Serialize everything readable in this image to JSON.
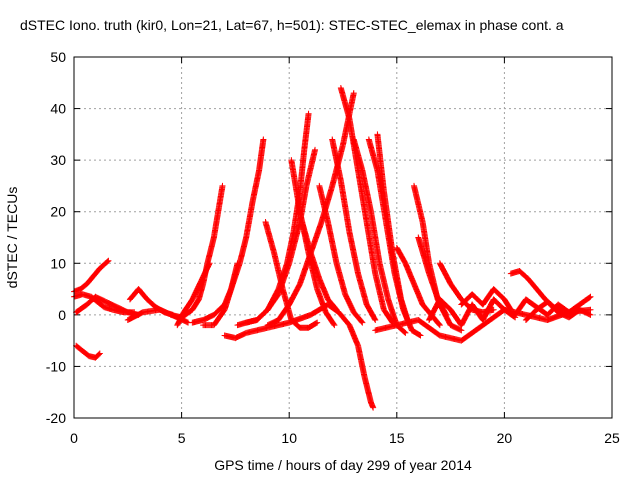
{
  "chart_data": {
    "type": "scatter",
    "title": "dSTEC Iono. truth (kir0, Lon=21, Lat=67, h=501): STEC-STEC_elemax in phase cont. a",
    "xlabel": "GPS time / hours of day 299 of year 2014",
    "ylabel": "dSTEC  / TECUs",
    "xlim": [
      0,
      25
    ],
    "ylim": [
      -20,
      50
    ],
    "xticks": [
      0,
      5,
      10,
      15,
      20,
      25
    ],
    "yticks": [
      -20,
      -10,
      0,
      10,
      20,
      30,
      40,
      50
    ],
    "grid": true,
    "marker": "plus",
    "color": "#ff0000",
    "series": [
      {
        "x": [
          0.0,
          0.3,
          0.6,
          0.9,
          1.2,
          1.6
        ],
        "y": [
          4.5,
          5.0,
          6.0,
          7.5,
          9.0,
          10.5
        ]
      },
      {
        "x": [
          0.0,
          0.4,
          0.8,
          1.1,
          1.4,
          1.8,
          2.3,
          2.8
        ],
        "y": [
          3.5,
          4.0,
          3.5,
          2.5,
          1.5,
          1.0,
          0.5,
          0.5
        ]
      },
      {
        "x": [
          0.1,
          0.6,
          1.0,
          1.5,
          2.0,
          2.5,
          3.0
        ],
        "y": [
          0.5,
          2.0,
          3.5,
          2.5,
          1.5,
          0.5,
          0.0
        ]
      },
      {
        "x": [
          0.1,
          0.4,
          0.7,
          1.0,
          1.2
        ],
        "y": [
          -6.0,
          -7.0,
          -8.0,
          -8.3,
          -7.5
        ]
      },
      {
        "x": [
          2.6,
          3.0,
          3.4,
          3.8,
          4.2,
          4.6
        ],
        "y": [
          3.0,
          5.0,
          3.0,
          1.5,
          0.5,
          0.0
        ]
      },
      {
        "x": [
          2.5,
          3.2,
          4.0,
          4.8,
          5.3
        ],
        "y": [
          -1.0,
          0.5,
          1.0,
          -0.5,
          -1.5
        ]
      },
      {
        "x": [
          4.5,
          5.0,
          5.5,
          5.8,
          6.0,
          6.2,
          6.5,
          6.7,
          6.9
        ],
        "y": [
          0.0,
          -0.5,
          1.0,
          3.0,
          6.0,
          10.0,
          15.0,
          20.0,
          25.0
        ]
      },
      {
        "x": [
          4.8,
          5.1,
          5.5,
          5.9,
          6.3
        ],
        "y": [
          -2.0,
          0.5,
          3.0,
          6.5,
          10.0
        ]
      },
      {
        "x": [
          5.5,
          6.0,
          6.5,
          7.0,
          7.3,
          7.7,
          8.0,
          8.3,
          8.6,
          8.8
        ],
        "y": [
          -1.5,
          -1.0,
          0.0,
          2.0,
          5.0,
          10.0,
          15.0,
          22.0,
          28.0,
          34.0
        ]
      },
      {
        "x": [
          6.0,
          6.5,
          7.0,
          7.3,
          7.6
        ],
        "y": [
          -2.0,
          -2.0,
          1.0,
          5.0,
          10.0
        ]
      },
      {
        "x": [
          7.0,
          7.5,
          8.0,
          9.0,
          10.0,
          11.0,
          11.8,
          12.3,
          12.8,
          13.2,
          13.5,
          13.8,
          13.9
        ],
        "y": [
          -4.0,
          -4.5,
          -3.5,
          -2.5,
          -1.5,
          0.0,
          2.0,
          0.5,
          -2.0,
          -6.0,
          -12.0,
          -17.0,
          -18.0
        ]
      },
      {
        "x": [
          7.6,
          8.0,
          8.5,
          9.0,
          9.5,
          9.9,
          10.2,
          10.5,
          10.7,
          10.9
        ],
        "y": [
          -2.0,
          -1.5,
          -1.0,
          1.0,
          5.0,
          10.0,
          16.0,
          24.0,
          32.0,
          39.0
        ]
      },
      {
        "x": [
          8.0,
          8.5,
          9.0,
          9.5,
          10.0,
          10.5,
          10.8,
          11.2
        ],
        "y": [
          -1.5,
          -1.0,
          1.0,
          4.0,
          10.0,
          18.0,
          25.0,
          32.0
        ]
      },
      {
        "x": [
          8.9,
          9.3,
          9.7,
          10.1,
          10.5,
          10.9,
          11.3
        ],
        "y": [
          18.0,
          12.0,
          5.0,
          -1.0,
          -2.5,
          -2.5,
          -1.5
        ]
      },
      {
        "x": [
          9.0,
          9.5,
          10.0,
          10.5,
          11.0,
          11.5,
          12.0,
          12.5,
          13.0
        ],
        "y": [
          -2.0,
          -1.0,
          2.0,
          6.0,
          12.0,
          18.0,
          25.0,
          33.0,
          43.0
        ]
      },
      {
        "x": [
          10.1,
          10.5,
          10.9,
          11.3,
          11.7,
          12.1
        ],
        "y": [
          30.0,
          20.0,
          12.0,
          5.0,
          0.5,
          -2.0
        ]
      },
      {
        "x": [
          10.6,
          11.0,
          11.4,
          11.8,
          12.2
        ],
        "y": [
          18.0,
          12.0,
          7.0,
          3.0,
          1.0
        ]
      },
      {
        "x": [
          11.4,
          11.8,
          12.2,
          12.6,
          13.0,
          13.4
        ],
        "y": [
          25.0,
          18.0,
          10.0,
          4.0,
          0.5,
          -1.5
        ]
      },
      {
        "x": [
          12.0,
          12.4,
          12.8,
          13.2,
          13.6,
          14.0
        ],
        "y": [
          34.0,
          26.0,
          16.0,
          8.0,
          2.0,
          -1.0
        ]
      },
      {
        "x": [
          12.4,
          12.8,
          13.2,
          13.6,
          14.0,
          14.4,
          14.8
        ],
        "y": [
          44.0,
          38.0,
          28.0,
          18.0,
          8.0,
          1.0,
          -1.5
        ]
      },
      {
        "x": [
          13.0,
          13.4,
          13.8,
          14.2,
          14.6,
          15.0,
          15.4
        ],
        "y": [
          34.0,
          28.0,
          20.0,
          10.0,
          3.0,
          -2.0,
          -3.5
        ]
      },
      {
        "x": [
          13.7,
          14.1,
          14.5,
          14.9,
          15.3,
          15.7,
          16.1
        ],
        "y": [
          34.0,
          28.0,
          18.0,
          8.0,
          1.0,
          -3.0,
          -4.0
        ]
      },
      {
        "x": [
          14.1,
          14.4,
          14.8,
          15.2,
          15.5
        ],
        "y": [
          35.0,
          24.0,
          12.0,
          3.0,
          -1.0
        ]
      },
      {
        "x": [
          15.0,
          15.4,
          15.8,
          16.2,
          16.6,
          17.0
        ],
        "y": [
          13.0,
          10.0,
          6.0,
          2.0,
          0.0,
          -2.0
        ]
      },
      {
        "x": [
          15.8,
          16.2,
          16.5,
          16.9,
          17.3
        ],
        "y": [
          25.0,
          18.0,
          10.0,
          3.0,
          0.0
        ]
      },
      {
        "x": [
          16.0,
          16.5,
          17.0,
          17.5,
          18.0
        ],
        "y": [
          15.0,
          8.0,
          2.0,
          -2.0,
          -3.0
        ]
      },
      {
        "x": [
          14.0,
          15.0,
          16.0,
          17.0,
          18.0,
          19.0,
          20.0,
          21.0,
          22.0,
          23.0,
          24.0
        ],
        "y": [
          -3.0,
          -2.0,
          -1.0,
          -4.0,
          -5.0,
          -2.0,
          1.0,
          0.0,
          -1.0,
          0.5,
          1.0
        ]
      },
      {
        "x": [
          16.5,
          17.0,
          17.5,
          18.0,
          18.5,
          19.0,
          19.5,
          20.0,
          20.5
        ],
        "y": [
          -1.0,
          3.0,
          1.0,
          -2.0,
          2.0,
          -1.0,
          3.0,
          1.0,
          -0.5
        ]
      },
      {
        "x": [
          17.0,
          17.5,
          18.0,
          18.5,
          19.0,
          19.5
        ],
        "y": [
          10.0,
          6.0,
          3.0,
          1.0,
          0.5,
          1.0
        ]
      },
      {
        "x": [
          18.0,
          18.5,
          19.0,
          19.5,
          20.0,
          20.3
        ],
        "y": [
          2.0,
          4.0,
          2.0,
          5.0,
          3.0,
          1.0
        ]
      },
      {
        "x": [
          20.3,
          20.7,
          21.1,
          21.5,
          21.9,
          22.3,
          22.7
        ],
        "y": [
          8.0,
          8.5,
          7.0,
          5.0,
          3.0,
          1.5,
          0.5
        ]
      },
      {
        "x": [
          20.5,
          21.0,
          21.5,
          22.0,
          22.5,
          23.0,
          23.5,
          24.0
        ],
        "y": [
          0.0,
          3.0,
          1.5,
          0.0,
          2.0,
          0.5,
          2.0,
          3.5
        ]
      },
      {
        "x": [
          21.0,
          21.5,
          22.0,
          22.5,
          23.0,
          23.5,
          24.0
        ],
        "y": [
          -1.0,
          1.0,
          2.5,
          0.5,
          -0.5,
          1.0,
          0.0
        ]
      }
    ]
  }
}
